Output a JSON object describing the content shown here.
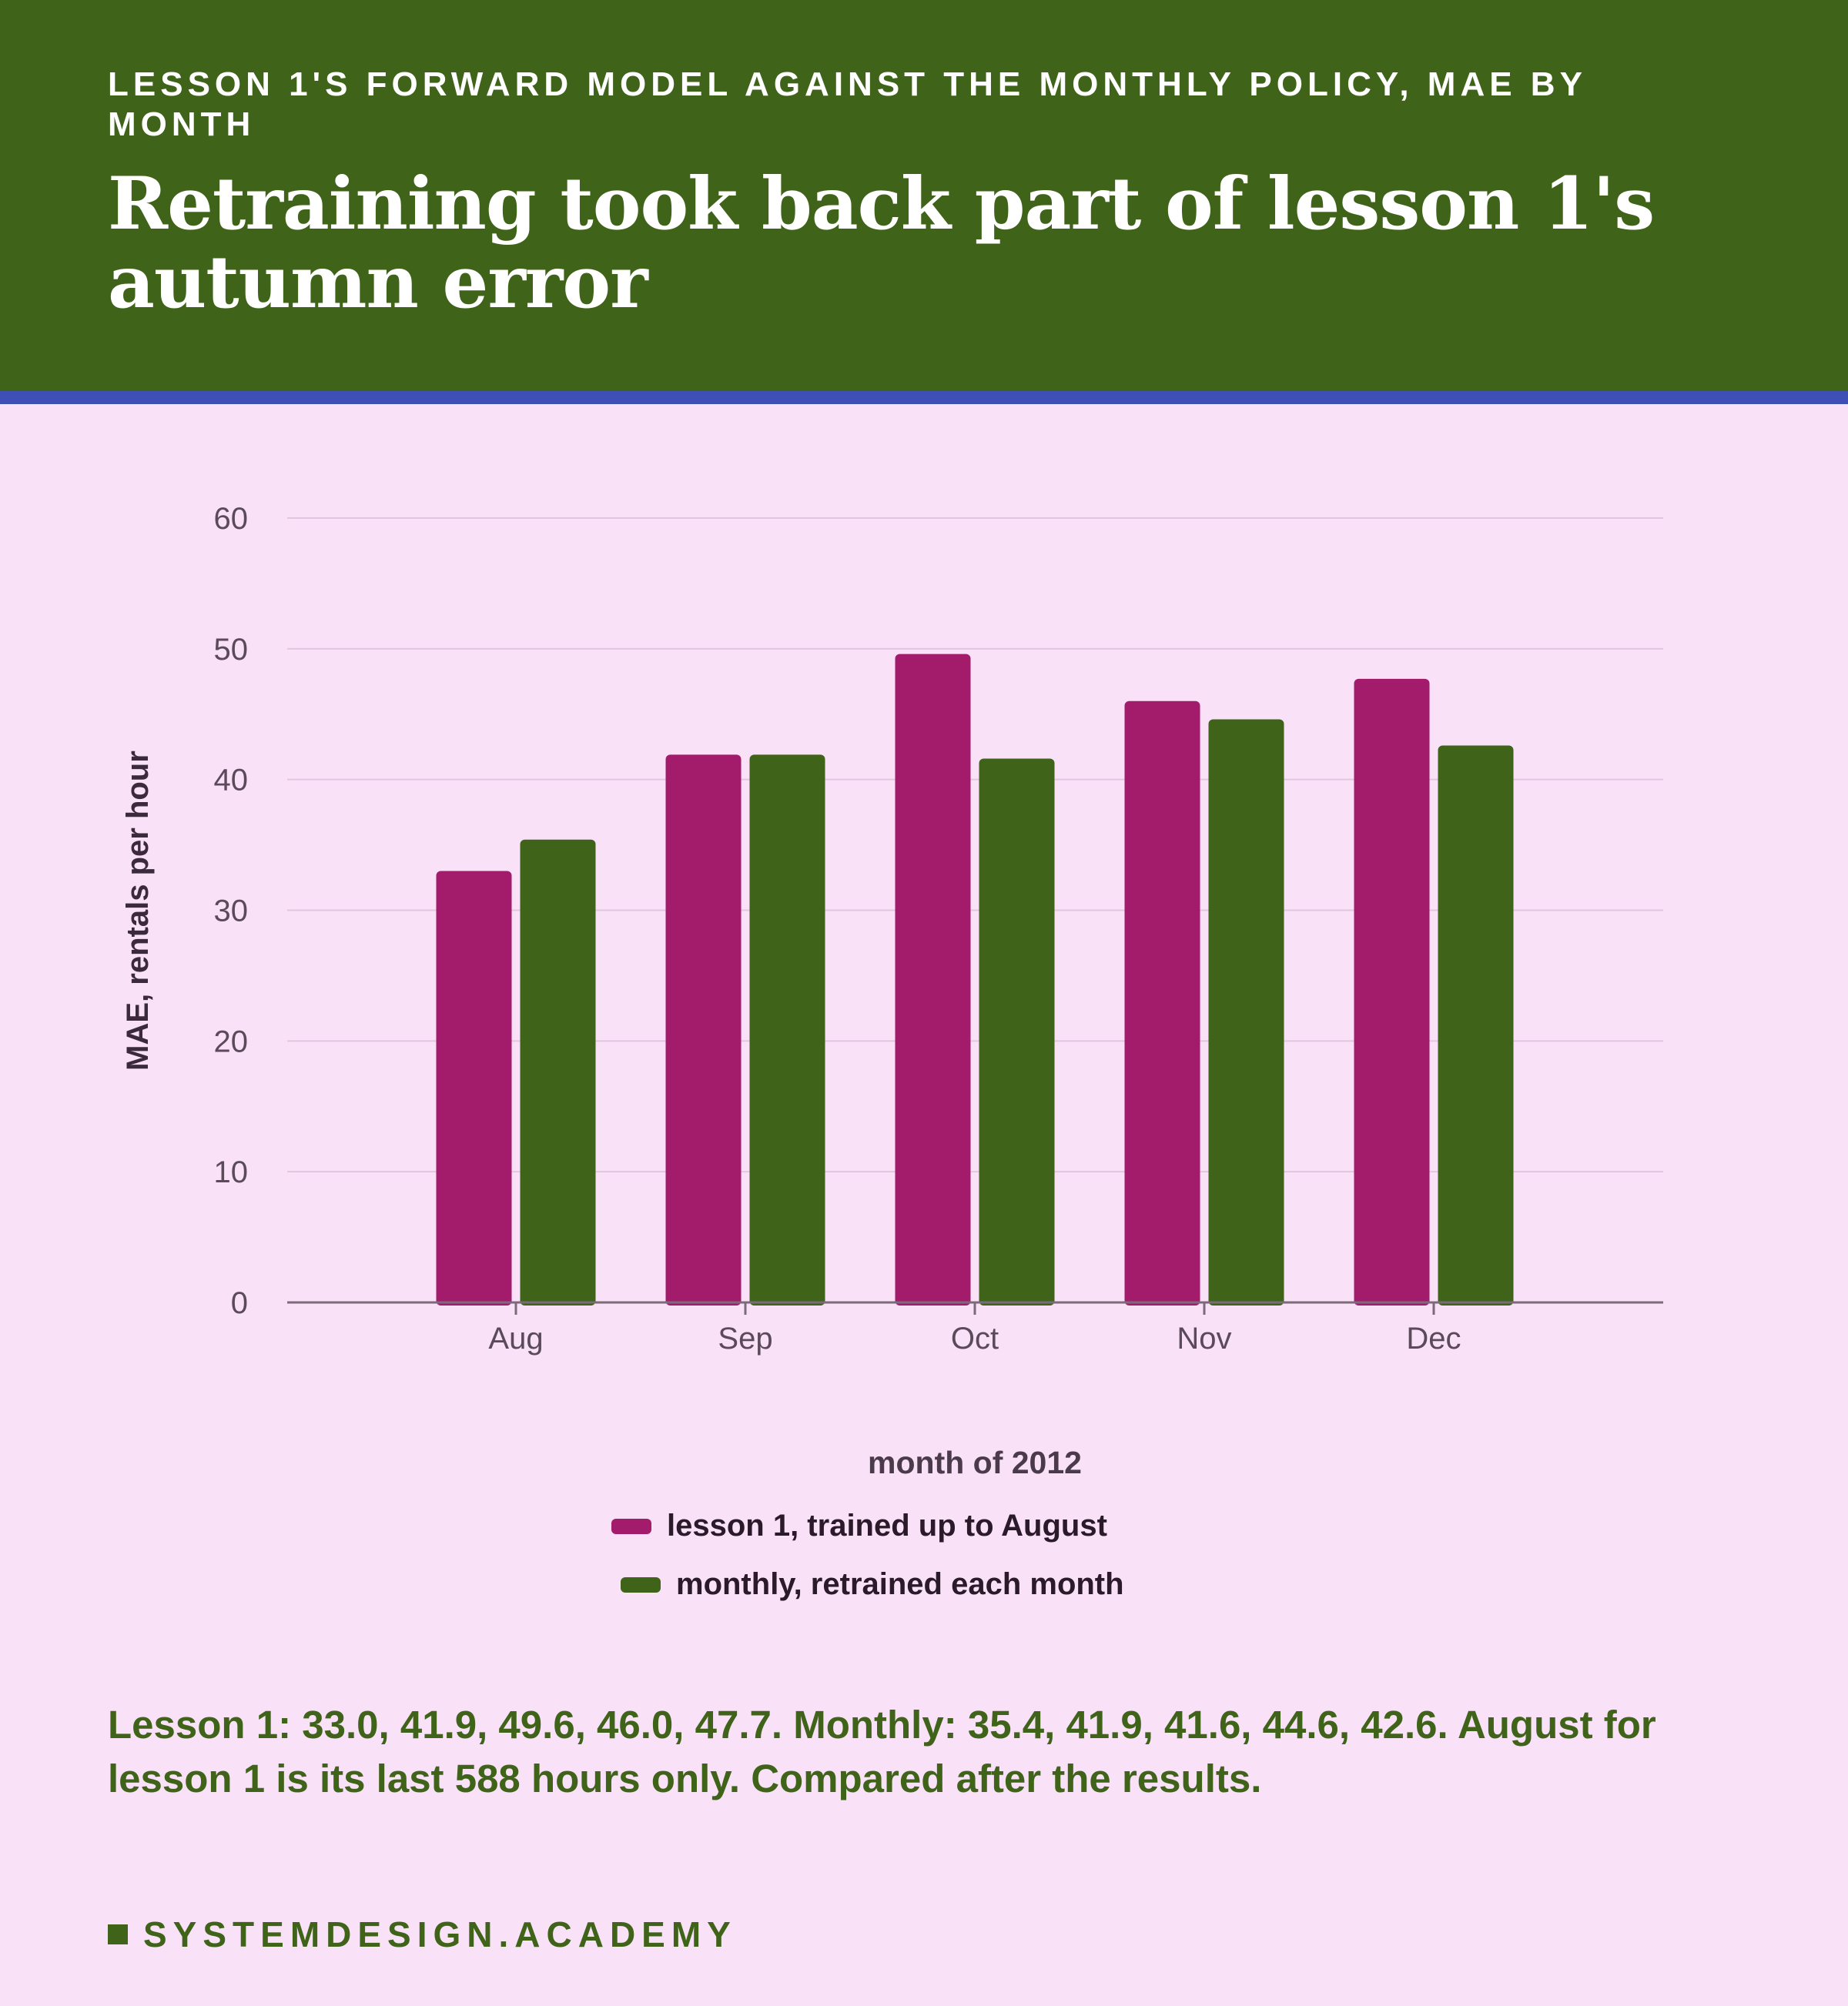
{
  "header": {
    "kicker": "LESSON 1'S FORWARD MODEL AGAINST THE MONTHLY POLICY, MAE BY MONTH",
    "title": "Retraining took back part of lesson 1's autumn error"
  },
  "colors": {
    "header_bg": "#40631a",
    "accent_rule": "#3e50b5",
    "page_bg": "#f9e1f7",
    "lesson1": "#a31c6b",
    "monthly": "#40631a"
  },
  "chart_data": {
    "type": "bar",
    "title": "",
    "xlabel": "month of 2012",
    "ylabel": "MAE, rentals per hour",
    "categories": [
      "Aug",
      "Sep",
      "Oct",
      "Nov",
      "Dec"
    ],
    "ylim": [
      0,
      60
    ],
    "yticks": [
      0,
      10,
      20,
      30,
      40,
      50,
      60
    ],
    "grid": true,
    "legend_placement": "bottom-center",
    "series": [
      {
        "name": "lesson 1, trained up to August",
        "color": "#a31c6b",
        "values": [
          33.0,
          41.9,
          49.6,
          46.0,
          47.7
        ]
      },
      {
        "name": "monthly, retrained each month",
        "color": "#40631a",
        "values": [
          35.4,
          41.9,
          41.6,
          44.6,
          42.6
        ]
      }
    ]
  },
  "note": "Lesson 1: 33.0, 41.9, 49.6, 46.0, 47.7. Monthly: 35.4, 41.9, 41.6, 44.6, 42.6. August for lesson 1 is its last 588 hours only. Compared after the results.",
  "brand": "SYSTEMDESIGN.ACADEMY"
}
